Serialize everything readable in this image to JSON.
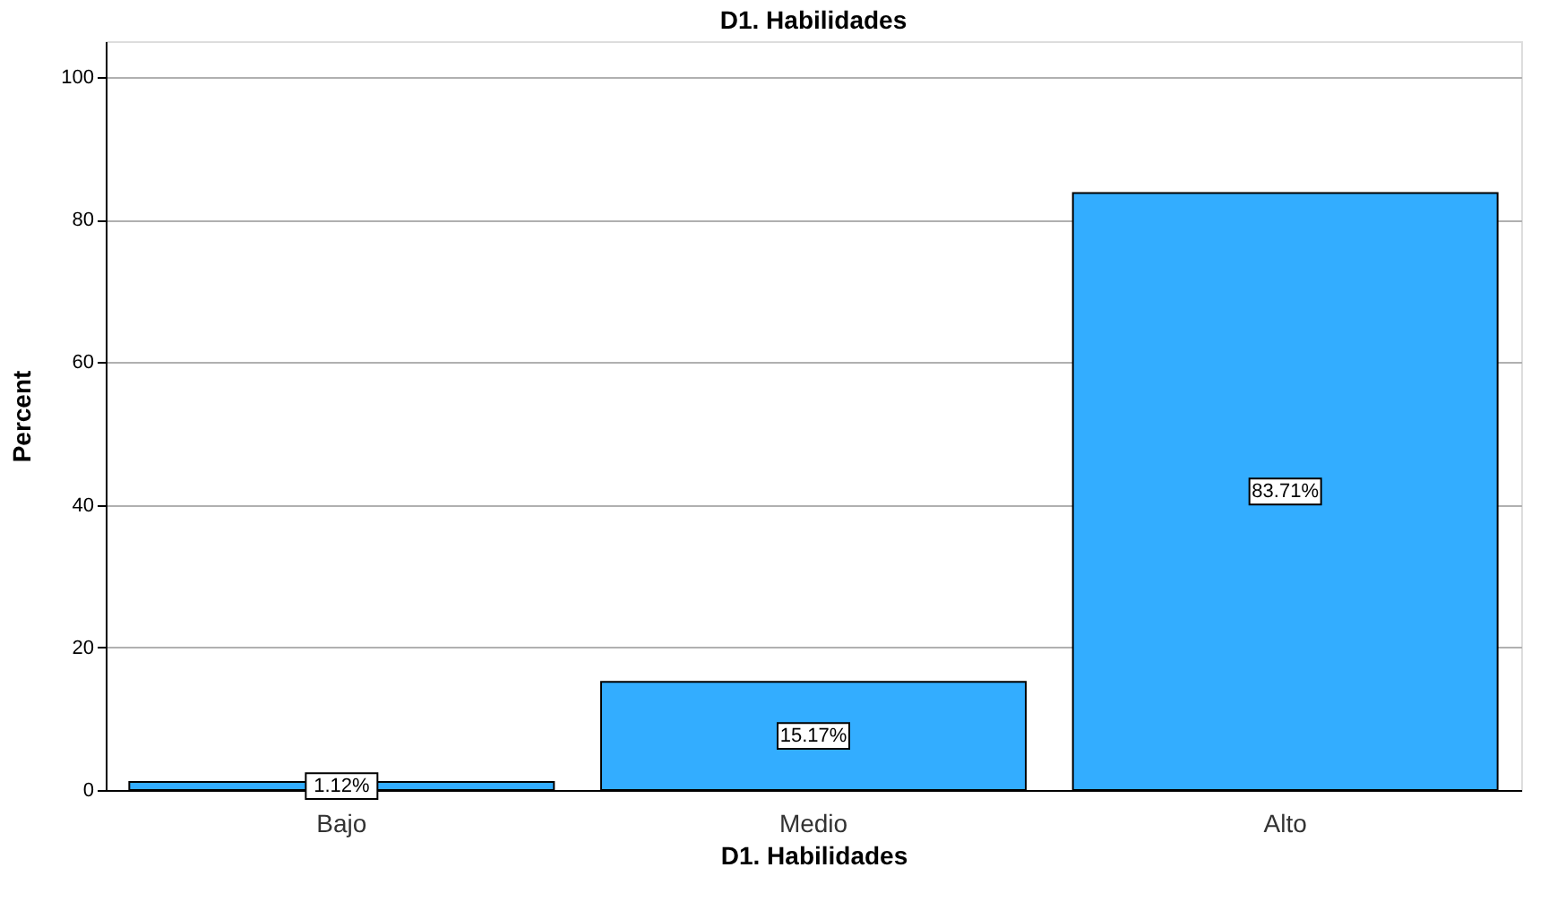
{
  "chart_data": {
    "type": "bar",
    "title": "D1. Habilidades",
    "xlabel": "D1. Habilidades",
    "ylabel": "Percent",
    "categories": [
      "Bajo",
      "Medio",
      "Alto"
    ],
    "values": [
      1.12,
      15.17,
      83.71
    ],
    "value_labels": [
      "1.12%",
      "15.17%",
      "83.71%"
    ],
    "color": "#33adff",
    "ylim": [
      0,
      105
    ],
    "yticks": [
      0,
      20,
      40,
      60,
      80,
      100
    ],
    "grid": "y"
  }
}
